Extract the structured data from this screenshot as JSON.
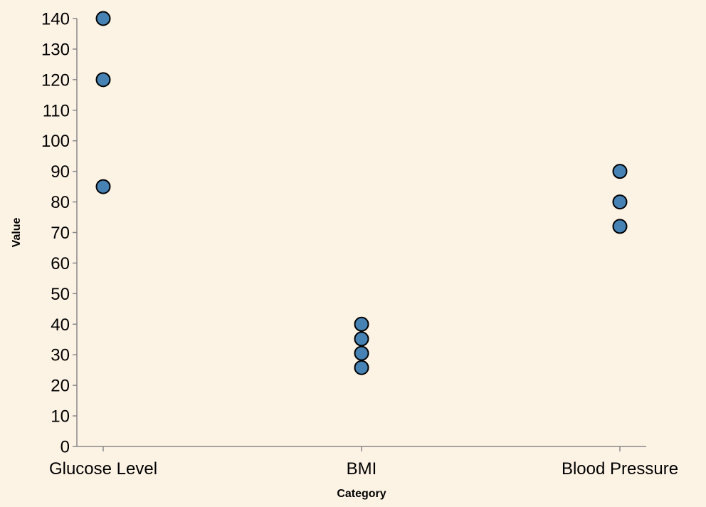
{
  "chart_data": {
    "type": "scatter",
    "title": "",
    "xlabel": "Category",
    "ylabel": "Value",
    "categories": [
      "Glucose Level",
      "BMI",
      "Blood Pressure"
    ],
    "ylim": [
      0,
      140
    ],
    "yticks": [
      0,
      10,
      20,
      30,
      40,
      50,
      60,
      70,
      80,
      90,
      100,
      110,
      120,
      130,
      140
    ],
    "grid": false,
    "point_color": "#4682b4",
    "background_color": "#fdf3e5",
    "points": [
      {
        "category": "Glucose Level",
        "value": 140
      },
      {
        "category": "Glucose Level",
        "value": 120
      },
      {
        "category": "Glucose Level",
        "value": 85
      },
      {
        "category": "BMI",
        "value": 40
      },
      {
        "category": "BMI",
        "value": 35.2
      },
      {
        "category": "BMI",
        "value": 30.5
      },
      {
        "category": "BMI",
        "value": 25.8
      },
      {
        "category": "Blood Pressure",
        "value": 90
      },
      {
        "category": "Blood Pressure",
        "value": 80
      },
      {
        "category": "Blood Pressure",
        "value": 72
      }
    ]
  }
}
